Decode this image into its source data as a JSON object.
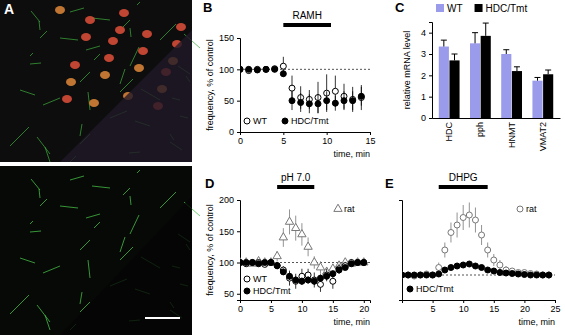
{
  "image_panel": {
    "panel": "A"
  },
  "chart_data": [
    {
      "type": "scatter",
      "panel": "B",
      "xlabel": "time, min",
      "ylabel": "frequency, % of control",
      "xlim": [
        0,
        15
      ],
      "ylim": [
        0,
        150
      ],
      "xticks": [
        0,
        5,
        10,
        15
      ],
      "yticks": [
        0,
        50,
        100,
        150
      ],
      "baseline": 100,
      "stimulus": {
        "label": "RAMH",
        "start": 5,
        "end": 10.5
      },
      "x": [
        0,
        1,
        2,
        3,
        4,
        5,
        6,
        7,
        8,
        9,
        10,
        11,
        12,
        13,
        14
      ],
      "series": [
        {
          "name": "WT",
          "marker": "circle-open",
          "color": "#000000",
          "values": [
            100,
            98,
            100,
            100,
            101,
            105,
            70,
            55,
            52,
            55,
            62,
            65,
            57,
            52,
            55
          ],
          "errors": [
            2,
            2,
            3,
            2,
            3,
            15,
            20,
            18,
            15,
            25,
            30,
            25,
            20,
            20,
            20
          ]
        },
        {
          "name": "HDC/Tmt",
          "marker": "circle",
          "color": "#000000",
          "values": [
            100,
            100,
            99,
            100,
            100,
            93,
            50,
            47,
            45,
            45,
            50,
            46,
            50,
            50,
            57
          ],
          "errors": [
            2,
            2,
            2,
            2,
            3,
            5,
            15,
            15,
            15,
            15,
            15,
            12,
            15,
            15,
            15
          ]
        }
      ]
    },
    {
      "type": "bar",
      "panel": "C",
      "ylabel": "relative mRNA level",
      "ylim": [
        0,
        4.5
      ],
      "yticks": [
        0,
        1,
        2,
        3,
        4
      ],
      "categories": [
        "HDC",
        "pph",
        "HNMT",
        "VMAT2"
      ],
      "legend": "top",
      "series": [
        {
          "name": "WT",
          "color": "#9b9bec",
          "values": [
            3.35,
            3.5,
            3.0,
            1.75
          ],
          "errors": [
            0.3,
            0.5,
            0.2,
            0.15
          ]
        },
        {
          "name": "HDC/Tmt",
          "color": "#000000",
          "values": [
            2.7,
            3.85,
            2.2,
            2.05
          ],
          "errors": [
            0.3,
            0.6,
            0.2,
            0.2
          ]
        }
      ]
    },
    {
      "type": "scatter",
      "panel": "D",
      "xlabel": "time, min",
      "ylabel": "frequency, % of control",
      "xlim": [
        0,
        21
      ],
      "ylim": [
        40,
        200
      ],
      "xticks": [
        0,
        5,
        10,
        15,
        20
      ],
      "yticks": [
        50,
        100,
        150,
        200
      ],
      "baseline": 100,
      "stimulus": {
        "label": "pH 7.0",
        "start": 6,
        "end": 12
      },
      "x": [
        0,
        1,
        2,
        3,
        4,
        5,
        6,
        7,
        8,
        9,
        10,
        11,
        12,
        13,
        14,
        15,
        16,
        17,
        18,
        19,
        20
      ],
      "series": [
        {
          "name": "rat",
          "marker": "triangle-open",
          "color": "#777777",
          "values": [
            100,
            100,
            98,
            102,
            100,
            100,
            110,
            140,
            165,
            155,
            145,
            125,
            100,
            92,
            85,
            90,
            95,
            100,
            98,
            100,
            100
          ],
          "errors": [
            3,
            3,
            3,
            3,
            3,
            4,
            8,
            15,
            20,
            20,
            18,
            15,
            10,
            10,
            8,
            8,
            6,
            5,
            4,
            4,
            3
          ]
        },
        {
          "name": "WT",
          "marker": "circle-open",
          "color": "#000000",
          "values": [
            100,
            98,
            100,
            100,
            97,
            100,
            95,
            88,
            75,
            70,
            78,
            80,
            72,
            65,
            80,
            70,
            90,
            95,
            100,
            100,
            100
          ],
          "errors": [
            3,
            3,
            3,
            3,
            3,
            4,
            6,
            6,
            12,
            12,
            12,
            10,
            12,
            12,
            10,
            12,
            8,
            6,
            5,
            4,
            3
          ]
        },
        {
          "name": "HDC/Tmt",
          "marker": "circle",
          "color": "#000000",
          "values": [
            100,
            100,
            100,
            98,
            100,
            100,
            95,
            85,
            78,
            72,
            70,
            72,
            70,
            75,
            78,
            82,
            88,
            92,
            98,
            100,
            100
          ],
          "errors": [
            2,
            2,
            2,
            2,
            2,
            3,
            4,
            5,
            6,
            6,
            6,
            6,
            6,
            6,
            6,
            5,
            5,
            4,
            3,
            3,
            2
          ]
        }
      ]
    },
    {
      "type": "scatter",
      "panel": "E",
      "xlabel": "time, min",
      "xlim": [
        0,
        25
      ],
      "ylim": [
        50,
        250
      ],
      "xticks": [
        5,
        10,
        15,
        20,
        25
      ],
      "yticks": [],
      "tick_labels": "x",
      "baseline": 100,
      "stimulus": {
        "label": "DHPG",
        "start": 6,
        "end": 14
      },
      "x": [
        0,
        1,
        2,
        3,
        4,
        5,
        6,
        7,
        8,
        9,
        10,
        11,
        12,
        13,
        14,
        15,
        16,
        17,
        18,
        19,
        20,
        21,
        22,
        23,
        24
      ],
      "series": [
        {
          "name": "rat",
          "marker": "circle-open",
          "color": "#777777",
          "values": [
            100,
            100,
            98,
            100,
            102,
            100,
            115,
            150,
            185,
            200,
            215,
            220,
            210,
            180,
            150,
            130,
            120,
            110,
            108,
            105,
            105,
            103,
            102,
            100,
            100
          ],
          "errors": [
            4,
            4,
            4,
            4,
            4,
            5,
            10,
            15,
            20,
            25,
            25,
            25,
            25,
            20,
            15,
            12,
            10,
            8,
            6,
            5,
            5,
            4,
            4,
            4,
            4
          ]
        },
        {
          "name": "HDC/Tmt",
          "marker": "circle",
          "color": "#000000",
          "values": [
            100,
            100,
            100,
            100,
            100,
            100,
            102,
            110,
            115,
            118,
            120,
            122,
            118,
            115,
            110,
            108,
            105,
            104,
            103,
            102,
            101,
            100,
            100,
            100,
            100
          ],
          "errors": [
            3,
            3,
            3,
            3,
            3,
            3,
            3,
            4,
            4,
            4,
            4,
            4,
            4,
            4,
            4,
            3,
            3,
            3,
            3,
            3,
            3,
            3,
            3,
            3,
            3
          ]
        }
      ]
    }
  ]
}
